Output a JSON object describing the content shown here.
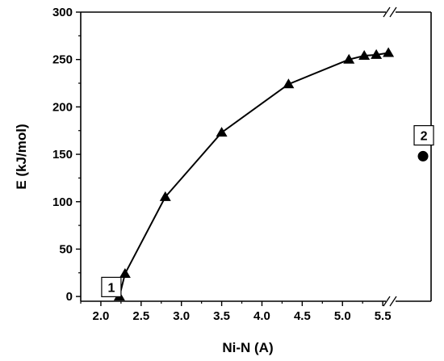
{
  "chart_data": {
    "type": "scatter",
    "xlabel": "Ni-N (A)",
    "ylabel": "E (kJ/mol)",
    "xlim": [
      1.75,
      6.1
    ],
    "ylim": [
      -5,
      300
    ],
    "xticks": [
      2.0,
      2.5,
      3.0,
      3.5,
      4.0,
      4.5,
      5.0,
      5.5
    ],
    "xtick_labels": [
      "2.0",
      "2.5",
      "3.0",
      "3.5",
      "4.0",
      "4.5",
      "5.0",
      "5.5"
    ],
    "yticks": [
      0,
      50,
      100,
      150,
      200,
      250,
      300
    ],
    "ytick_labels": [
      "0",
      "50",
      "100",
      "150",
      "200",
      "250",
      "300"
    ],
    "axis_break": "x",
    "series": [
      {
        "marker": "triangle",
        "line": true,
        "x": [
          2.23,
          2.3,
          2.8,
          3.5,
          4.33,
          5.08,
          5.27,
          5.42,
          5.57
        ],
        "y": [
          0,
          24,
          105,
          173,
          224,
          250,
          254,
          255,
          257
        ]
      },
      {
        "marker": "circle",
        "line": false,
        "x": [
          6.0
        ],
        "y": [
          148
        ]
      }
    ],
    "annotations": [
      {
        "text": "1",
        "x": 2.13,
        "y": 10
      },
      {
        "text": "2",
        "x": 6.01,
        "y": 170
      }
    ]
  }
}
